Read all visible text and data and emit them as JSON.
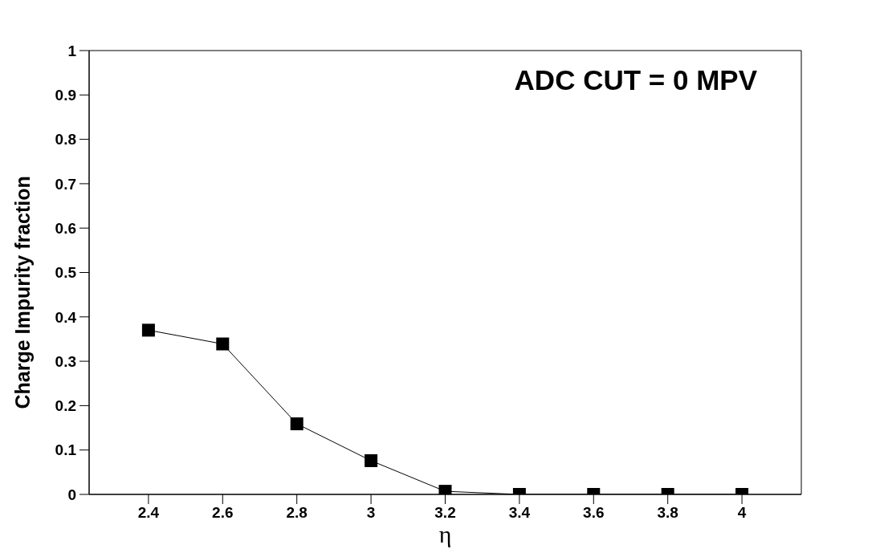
{
  "chart_data": {
    "type": "line",
    "xlabel": "η",
    "ylabel": "Charge Impurity fraction",
    "annotations": [
      "ADC CUT = 0 MPV"
    ],
    "x": [
      2.4,
      2.6,
      2.8,
      3.0,
      3.2,
      3.4,
      3.6,
      3.8,
      4.0
    ],
    "series": [
      {
        "color": "#000000",
        "values": [
          0.37,
          0.339,
          0.159,
          0.076,
          0.007,
          0,
          0,
          0,
          0
        ]
      }
    ],
    "xlim": [
      2.24,
      4.16
    ],
    "xticks": [
      2.4,
      2.6,
      2.8,
      3,
      3.2,
      3.4,
      3.6,
      3.8,
      4
    ],
    "ylim": [
      0,
      1
    ],
    "yticks": [
      0,
      0.1,
      0.2,
      0.3,
      0.4,
      0.5,
      0.6,
      0.7,
      0.8,
      0.9,
      1
    ],
    "marker": "square",
    "line_style": "solid",
    "grid": false
  }
}
